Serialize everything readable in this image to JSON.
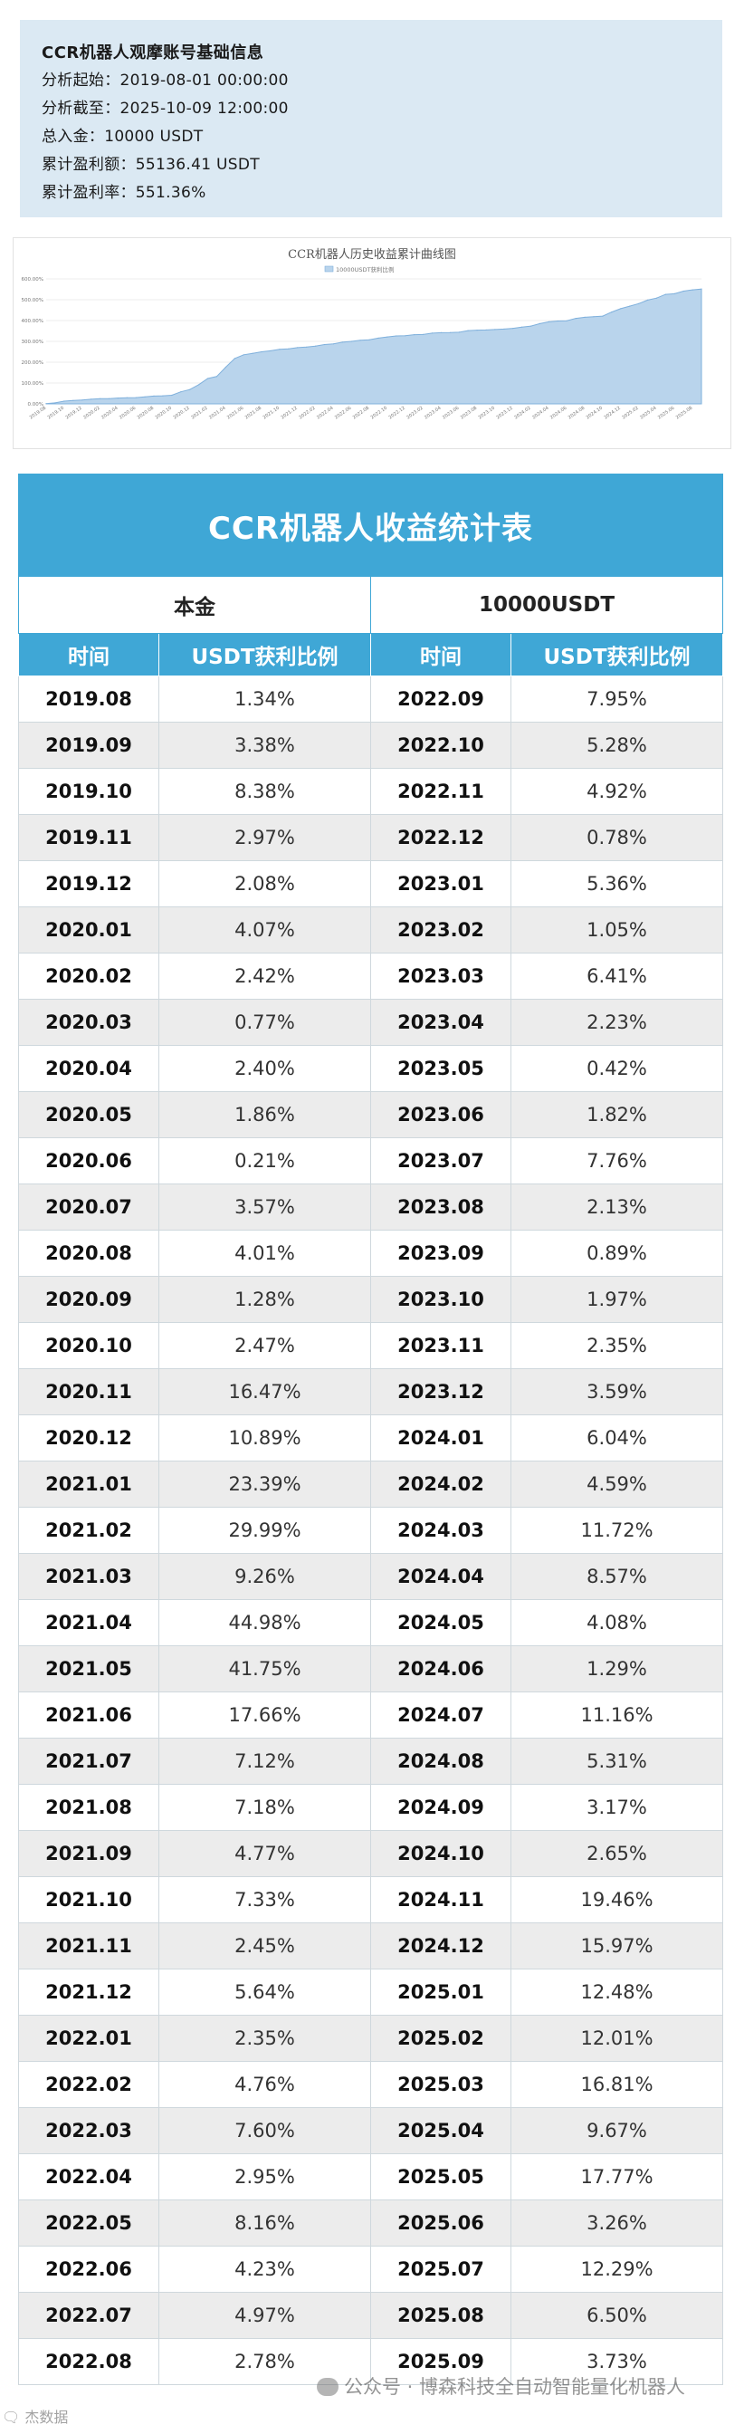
{
  "info": {
    "title": "CCR机器人观摩账号基础信息",
    "lines": [
      "分析起始：2019-08-01 00:00:00",
      "分析截至：2025-10-09 12:00:00",
      "总入金：10000 USDT",
      "累计盈利额：55136.41 USDT",
      "累计盈利率：551.36%"
    ]
  },
  "chart_data": {
    "type": "area",
    "title": "CCR机器人历史收益累计曲线图",
    "legend": "10000USDT获利比例",
    "legend_position": "top",
    "grid": true,
    "ylim": [
      0,
      600
    ],
    "y_ticks": [
      "0.00%",
      "100.00%",
      "200.00%",
      "300.00%",
      "400.00%",
      "500.00%",
      "600.00%"
    ],
    "x": [
      "2019.08",
      "2019.09",
      "2019.10",
      "2019.11",
      "2019.12",
      "2020.01",
      "2020.02",
      "2020.03",
      "2020.04",
      "2020.05",
      "2020.06",
      "2020.07",
      "2020.08",
      "2020.09",
      "2020.10",
      "2020.11",
      "2020.12",
      "2021.01",
      "2021.02",
      "2021.03",
      "2021.04",
      "2021.05",
      "2021.06",
      "2021.07",
      "2021.08",
      "2021.09",
      "2021.10",
      "2021.11",
      "2021.12",
      "2022.01",
      "2022.02",
      "2022.03",
      "2022.04",
      "2022.05",
      "2022.06",
      "2022.07",
      "2022.08",
      "2022.09",
      "2022.10",
      "2022.11",
      "2022.12",
      "2023.01",
      "2023.02",
      "2023.03",
      "2023.04",
      "2023.05",
      "2023.06",
      "2023.07",
      "2023.08",
      "2023.09",
      "2023.10",
      "2023.11",
      "2023.12",
      "2024.01",
      "2024.02",
      "2024.03",
      "2024.04",
      "2024.05",
      "2024.06",
      "2024.07",
      "2024.08",
      "2024.09",
      "2024.10",
      "2024.11",
      "2024.12",
      "2025.01",
      "2025.02",
      "2025.03",
      "2025.04",
      "2025.05",
      "2025.06",
      "2025.07",
      "2025.08",
      "2025.09"
    ],
    "values": [
      1.34,
      4.72,
      13.1,
      16.07,
      18.15,
      22.22,
      24.64,
      25.41,
      27.81,
      29.67,
      29.88,
      33.45,
      37.46,
      38.74,
      41.21,
      57.68,
      68.57,
      91.96,
      121.95,
      131.21,
      176.19,
      217.94,
      235.6,
      242.72,
      249.9,
      254.67,
      262.0,
      264.45,
      270.09,
      272.44,
      277.2,
      284.8,
      287.75,
      295.91,
      300.14,
      305.11,
      307.89,
      315.84,
      321.12,
      326.04,
      326.82,
      332.18,
      333.23,
      339.64,
      341.87,
      342.29,
      344.11,
      351.87,
      354.0,
      354.89,
      356.86,
      359.21,
      362.8,
      368.84,
      373.43,
      385.15,
      393.72,
      397.8,
      399.09,
      410.25,
      415.56,
      418.73,
      421.38,
      440.84,
      456.81,
      469.29,
      481.3,
      498.11,
      507.78,
      525.55,
      528.81,
      541.1,
      547.6,
      551.33
    ]
  },
  "table": {
    "title": "CCR机器人收益统计表",
    "capital_label": "本金",
    "capital_value": "10000USDT",
    "col_time": "时间",
    "col_ratio": "USDT获利比例",
    "rows": [
      [
        "2019.08",
        "1.34%",
        "2022.09",
        "7.95%"
      ],
      [
        "2019.09",
        "3.38%",
        "2022.10",
        "5.28%"
      ],
      [
        "2019.10",
        "8.38%",
        "2022.11",
        "4.92%"
      ],
      [
        "2019.11",
        "2.97%",
        "2022.12",
        "0.78%"
      ],
      [
        "2019.12",
        "2.08%",
        "2023.01",
        "5.36%"
      ],
      [
        "2020.01",
        "4.07%",
        "2023.02",
        "1.05%"
      ],
      [
        "2020.02",
        "2.42%",
        "2023.03",
        "6.41%"
      ],
      [
        "2020.03",
        "0.77%",
        "2023.04",
        "2.23%"
      ],
      [
        "2020.04",
        "2.40%",
        "2023.05",
        "0.42%"
      ],
      [
        "2020.05",
        "1.86%",
        "2023.06",
        "1.82%"
      ],
      [
        "2020.06",
        "0.21%",
        "2023.07",
        "7.76%"
      ],
      [
        "2020.07",
        "3.57%",
        "2023.08",
        "2.13%"
      ],
      [
        "2020.08",
        "4.01%",
        "2023.09",
        "0.89%"
      ],
      [
        "2020.09",
        "1.28%",
        "2023.10",
        "1.97%"
      ],
      [
        "2020.10",
        "2.47%",
        "2023.11",
        "2.35%"
      ],
      [
        "2020.11",
        "16.47%",
        "2023.12",
        "3.59%"
      ],
      [
        "2020.12",
        "10.89%",
        "2024.01",
        "6.04%"
      ],
      [
        "2021.01",
        "23.39%",
        "2024.02",
        "4.59%"
      ],
      [
        "2021.02",
        "29.99%",
        "2024.03",
        "11.72%"
      ],
      [
        "2021.03",
        "9.26%",
        "2024.04",
        "8.57%"
      ],
      [
        "2021.04",
        "44.98%",
        "2024.05",
        "4.08%"
      ],
      [
        "2021.05",
        "41.75%",
        "2024.06",
        "1.29%"
      ],
      [
        "2021.06",
        "17.66%",
        "2024.07",
        "11.16%"
      ],
      [
        "2021.07",
        "7.12%",
        "2024.08",
        "5.31%"
      ],
      [
        "2021.08",
        "7.18%",
        "2024.09",
        "3.17%"
      ],
      [
        "2021.09",
        "4.77%",
        "2024.10",
        "2.65%"
      ],
      [
        "2021.10",
        "7.33%",
        "2024.11",
        "19.46%"
      ],
      [
        "2021.11",
        "2.45%",
        "2024.12",
        "15.97%"
      ],
      [
        "2021.12",
        "5.64%",
        "2025.01",
        "12.48%"
      ],
      [
        "2022.01",
        "2.35%",
        "2025.02",
        "12.01%"
      ],
      [
        "2022.02",
        "4.76%",
        "2025.03",
        "16.81%"
      ],
      [
        "2022.03",
        "7.60%",
        "2025.04",
        "9.67%"
      ],
      [
        "2022.04",
        "2.95%",
        "2025.05",
        "17.77%"
      ],
      [
        "2022.05",
        "8.16%",
        "2025.06",
        "3.26%"
      ],
      [
        "2022.06",
        "4.23%",
        "2025.07",
        "12.29%"
      ],
      [
        "2022.07",
        "4.97%",
        "2025.08",
        "6.50%"
      ],
      [
        "2022.08",
        "2.78%",
        "2025.09",
        "3.73%"
      ]
    ]
  },
  "watermark": {
    "text": "公众号 · 博森科技全自动智能量化机器人",
    "corner": "🗨 杰数据"
  },
  "colors": {
    "accent": "#3fa7d6",
    "info_bg": "#dbe9f3",
    "area_fill": "#b9d4ec",
    "area_line": "#7fb0dc"
  }
}
